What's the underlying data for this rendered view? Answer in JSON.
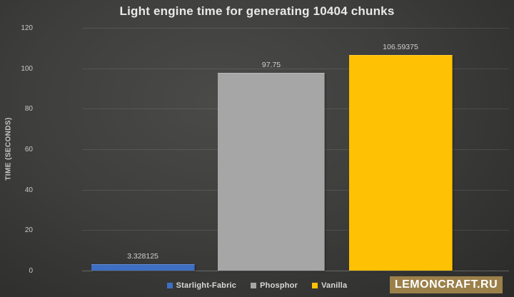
{
  "chart_data": {
    "type": "bar",
    "title": "Light engine time for generating 10404 chunks",
    "categories": [
      "Starlight-Fabric",
      "Phosphor",
      "Vanilla"
    ],
    "values": [
      3.328125,
      97.75,
      106.59375
    ],
    "value_labels": [
      "3.328125",
      "97.75",
      "106.59375"
    ],
    "bar_colors": [
      "#3e6fc3",
      "#a6a6a6",
      "#fec103"
    ],
    "xlabel": "",
    "ylabel": "TIME (SECONDS)",
    "ylim": [
      0,
      120
    ],
    "yticks": [
      0,
      20,
      40,
      60,
      80,
      100,
      120
    ],
    "grid": true,
    "legend_position": "bottom",
    "legend_entries": [
      "Starlight-Fabric",
      "Phosphor",
      "Vanilla"
    ]
  },
  "watermark": {
    "text": "LEMONCRAFT.RU",
    "bg_color": "#9b8049"
  }
}
